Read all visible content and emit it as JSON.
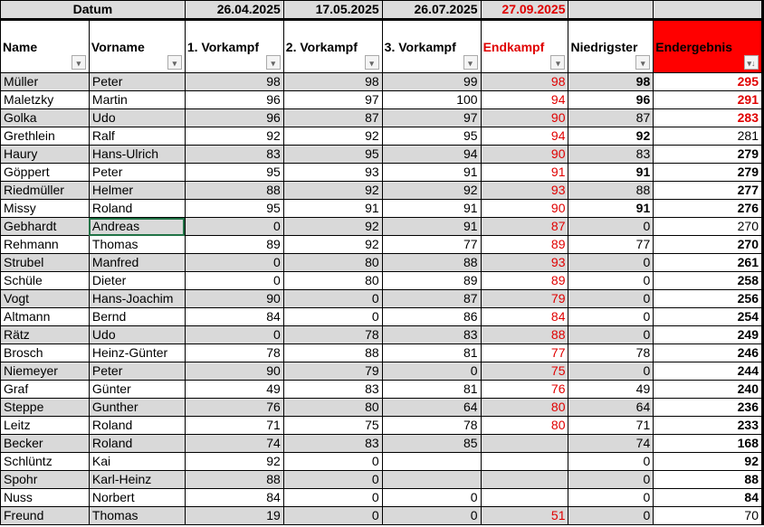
{
  "dates": {
    "label": "Datum",
    "v1": "26.04.2025",
    "v2": "17.05.2025",
    "v3": "26.07.2025",
    "final": "27.09.2025"
  },
  "headers": [
    "Name",
    "Vorname",
    "1. Vorkampf",
    "2. Vorkampf",
    "3. Vorkampf",
    "Endkampf",
    "Niedrigster",
    "Endergebnis"
  ],
  "colors": {
    "accent_red": "#e00000",
    "header_fill": "#ff0000",
    "row_shade": "#d9d9d9"
  },
  "sort_icon": "sort-descending-icon",
  "filter_icon": "dropdown-arrow-icon",
  "rows": [
    [
      "Müller",
      "Peter",
      "98",
      "98",
      "99",
      "98",
      "98",
      "295",
      "b",
      "rb"
    ],
    [
      "Maletzky",
      "Martin",
      "96",
      "97",
      "100",
      "94",
      "96",
      "291",
      "b",
      "rb"
    ],
    [
      "Golka",
      "Udo",
      "96",
      "87",
      "97",
      "90",
      "87",
      "283",
      "",
      "rb"
    ],
    [
      "Grethlein",
      "Ralf",
      "92",
      "92",
      "95",
      "94",
      "92",
      "281",
      "b",
      ""
    ],
    [
      "Haury",
      "Hans-Ulrich",
      "83",
      "95",
      "94",
      "90",
      "83",
      "279",
      "",
      "b"
    ],
    [
      "Göppert",
      "Peter",
      "95",
      "93",
      "91",
      "91",
      "91",
      "279",
      "b",
      "b"
    ],
    [
      "Riedmüller",
      "Helmer",
      "88",
      "92",
      "92",
      "93",
      "88",
      "277",
      "",
      "b"
    ],
    [
      "Missy",
      "Roland",
      "95",
      "91",
      "91",
      "90",
      "91",
      "276",
      "b",
      "b"
    ],
    [
      "Gebhardt",
      "Andreas",
      "0",
      "92",
      "91",
      "87",
      "0",
      "270",
      "",
      ""
    ],
    [
      "Rehmann",
      "Thomas",
      "89",
      "92",
      "77",
      "89",
      "77",
      "270",
      "",
      "b"
    ],
    [
      "Strubel",
      "Manfred",
      "0",
      "80",
      "88",
      "93",
      "0",
      "261",
      "",
      "b"
    ],
    [
      "Schüle",
      "Dieter",
      "0",
      "80",
      "89",
      "89",
      "0",
      "258",
      "",
      "b"
    ],
    [
      "Vogt",
      "Hans-Joachim",
      "90",
      "0",
      "87",
      "79",
      "0",
      "256",
      "",
      "b"
    ],
    [
      "Altmann",
      "Bernd",
      "84",
      "0",
      "86",
      "84",
      "0",
      "254",
      "",
      "b"
    ],
    [
      "Rätz",
      "Udo",
      "0",
      "78",
      "83",
      "88",
      "0",
      "249",
      "",
      "b"
    ],
    [
      "Brosch",
      "Heinz-Günter",
      "78",
      "88",
      "81",
      "77",
      "78",
      "246",
      "",
      "b"
    ],
    [
      "Niemeyer",
      "Peter",
      "90",
      "79",
      "0",
      "75",
      "0",
      "244",
      "",
      "b"
    ],
    [
      "Graf",
      "Günter",
      "49",
      "83",
      "81",
      "76",
      "49",
      "240",
      "",
      "b"
    ],
    [
      "Steppe",
      "Gunther",
      "76",
      "80",
      "64",
      "80",
      "64",
      "236",
      "",
      "b"
    ],
    [
      "Leitz",
      "Roland",
      "71",
      "75",
      "78",
      "80",
      "71",
      "233",
      "",
      "b"
    ],
    [
      "Becker",
      "Roland",
      "74",
      "83",
      "85",
      "",
      "74",
      "168",
      "",
      "b"
    ],
    [
      "Schlüntz",
      "Kai",
      "92",
      "0",
      "",
      "",
      "0",
      "92",
      "",
      "b"
    ],
    [
      "Spohr",
      "Karl-Heinz",
      "88",
      "0",
      "",
      "",
      "0",
      "88",
      "",
      "b"
    ],
    [
      "Nuss",
      "Norbert",
      "84",
      "0",
      "0",
      "",
      "0",
      "84",
      "",
      "b"
    ],
    [
      "Freund",
      "Thomas",
      "19",
      "0",
      "0",
      "51",
      "0",
      "70",
      "",
      ""
    ]
  ]
}
